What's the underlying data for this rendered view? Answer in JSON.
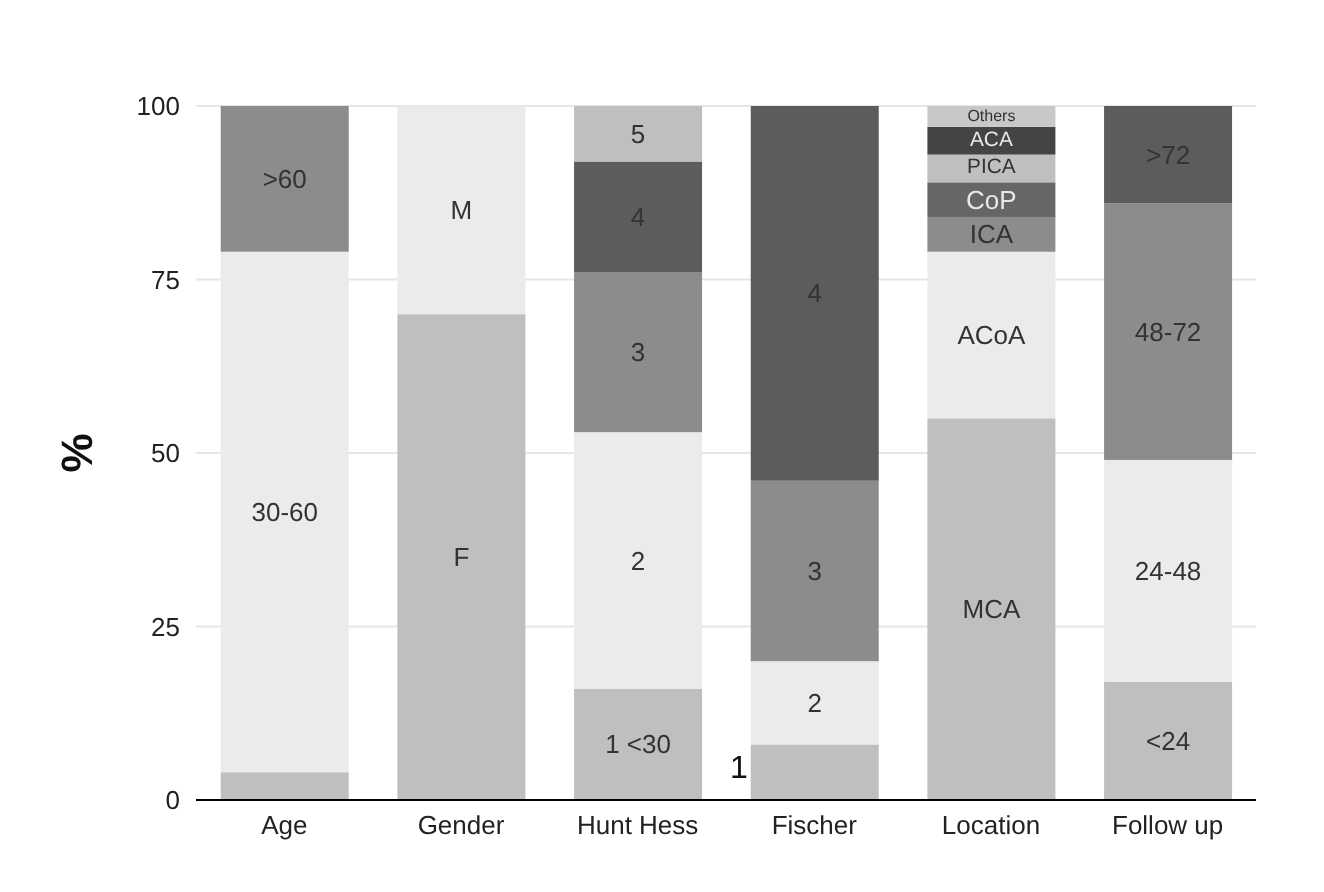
{
  "chart_data": {
    "type": "bar",
    "stacked": true,
    "ylabel": "%",
    "categories": [
      "Age",
      "Gender",
      "Hunt Hess",
      "Fischer",
      "Location",
      "Follow up"
    ],
    "ylim": [
      0,
      100
    ],
    "yticks": [
      0,
      25,
      50,
      75,
      100
    ],
    "grid": "y",
    "legend": false,
    "series": [
      {
        "color": "#bfbfbf",
        "values": [
          4,
          null,
          null,
          null,
          null,
          null
        ]
      },
      {
        "name": "30-60",
        "color": "#ebebeb",
        "values": [
          75,
          null,
          null,
          null,
          null,
          null
        ]
      },
      {
        "name": ">60",
        "color": "#8c8c8c",
        "values": [
          21,
          null,
          null,
          null,
          null,
          null
        ]
      },
      {
        "name": "F",
        "color": "#bfbfbf",
        "values": [
          null,
          70,
          null,
          null,
          null,
          null
        ]
      },
      {
        "name": "M",
        "color": "#ebebeb",
        "values": [
          null,
          30,
          null,
          null,
          null,
          null
        ]
      },
      {
        "name": "1 <30",
        "color": "#bfbfbf",
        "values": [
          null,
          null,
          16,
          null,
          null,
          null
        ]
      },
      {
        "name": "2",
        "color": "#ebebeb",
        "values": [
          null,
          null,
          37,
          null,
          null,
          null
        ]
      },
      {
        "name": "3",
        "color": "#8c8c8c",
        "values": [
          null,
          null,
          23,
          null,
          null,
          null
        ]
      },
      {
        "name": "4",
        "color": "#5c5c5c",
        "values": [
          null,
          null,
          16,
          null,
          null,
          null
        ]
      },
      {
        "name": "5",
        "color": "#bfbfbf",
        "values": [
          null,
          null,
          8,
          null,
          null,
          null
        ]
      },
      {
        "color": "#bfbfbf",
        "values": [
          null,
          null,
          null,
          8,
          null,
          null
        ]
      },
      {
        "name": "2",
        "color": "#ebebeb",
        "values": [
          null,
          null,
          null,
          12,
          null,
          null
        ]
      },
      {
        "name": "3",
        "color": "#8c8c8c",
        "values": [
          null,
          null,
          null,
          26,
          null,
          null
        ]
      },
      {
        "name": "4",
        "color": "#5c5c5c",
        "values": [
          null,
          null,
          null,
          54,
          null,
          null
        ]
      },
      {
        "name": "MCA",
        "color": "#bfbfbf",
        "values": [
          null,
          null,
          null,
          null,
          55,
          null
        ]
      },
      {
        "name": "ACoA",
        "color": "#ebebeb",
        "values": [
          null,
          null,
          null,
          null,
          24,
          null
        ]
      },
      {
        "name": "ICA",
        "color": "#8c8c8c",
        "values": [
          null,
          null,
          null,
          null,
          5,
          null
        ]
      },
      {
        "name": "CoP",
        "color": "#666666",
        "values": [
          null,
          null,
          null,
          null,
          5,
          null
        ]
      },
      {
        "name": "PICA",
        "color": "#bfbfbf",
        "values": [
          null,
          null,
          null,
          null,
          4,
          null
        ]
      },
      {
        "name": "ACA",
        "color": "#444444",
        "values": [
          null,
          null,
          null,
          null,
          4,
          null
        ]
      },
      {
        "name": "Others",
        "color": "#c8c8c8",
        "values": [
          null,
          null,
          null,
          null,
          3,
          null
        ]
      },
      {
        "name": "<24",
        "color": "#bfbfbf",
        "values": [
          null,
          null,
          null,
          null,
          null,
          17
        ]
      },
      {
        "name": "24-48",
        "color": "#ebebeb",
        "values": [
          null,
          null,
          null,
          null,
          null,
          32
        ]
      },
      {
        "name": "48-72",
        "color": "#8c8c8c",
        "values": [
          null,
          null,
          null,
          null,
          null,
          37
        ]
      },
      {
        "name": ">72",
        "color": "#5c5c5c",
        "values": [
          null,
          null,
          null,
          null,
          null,
          14
        ]
      }
    ],
    "annotations": [
      "1"
    ]
  }
}
